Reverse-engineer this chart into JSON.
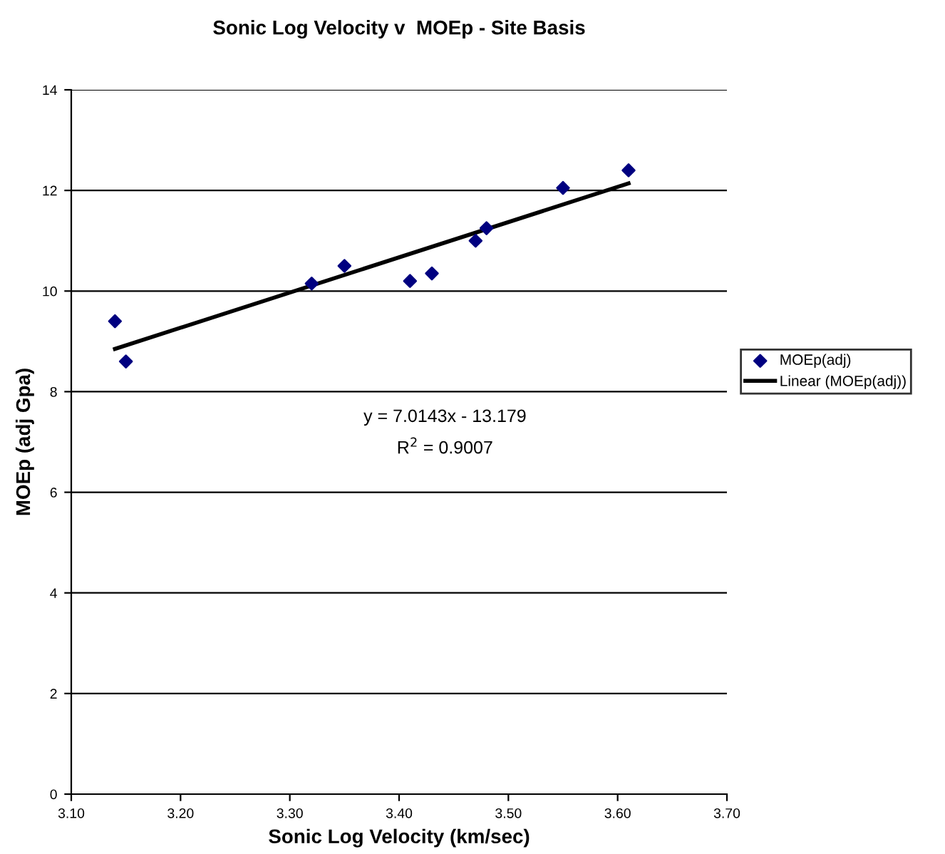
{
  "chart_data": {
    "type": "scatter",
    "title": "Sonic Log Velocity v  MOEp - Site Basis",
    "xlabel": "Sonic Log Velocity (km/sec)",
    "ylabel": "MOEp (adj Gpa)",
    "series": [
      {
        "name": "MOEp(adj)",
        "color": "#000080",
        "marker": "diamond",
        "x": [
          3.14,
          3.15,
          3.32,
          3.35,
          3.41,
          3.43,
          3.47,
          3.48,
          3.55,
          3.61
        ],
        "values": [
          9.4,
          8.6,
          10.15,
          10.5,
          10.2,
          10.35,
          11.0,
          11.25,
          12.05,
          12.4
        ]
      },
      {
        "name": "Linear (MOEp(adj))",
        "type": "line",
        "color": "#000000",
        "marker": "none",
        "line_style": "solid",
        "x": [
          3.14,
          3.61
        ],
        "values": [
          8.85,
          12.14
        ]
      }
    ],
    "xlim": [
      3.1,
      3.7
    ],
    "xticks": [
      {
        "value": 3.1,
        "label": "3.10"
      },
      {
        "value": 3.2,
        "label": "3.20"
      },
      {
        "value": 3.3,
        "label": "3.30"
      },
      {
        "value": 3.4,
        "label": "3.40"
      },
      {
        "value": 3.5,
        "label": "3.50"
      },
      {
        "value": 3.6,
        "label": "3.60"
      },
      {
        "value": 3.7,
        "label": "3.70"
      }
    ],
    "ylim": [
      0,
      14
    ],
    "yticks": [
      0,
      2,
      4,
      6,
      8,
      10,
      12,
      14
    ],
    "grid": "y",
    "legend": "right",
    "annotations": [
      "y = 7.0143x - 13.179",
      "R$^{2}$ = 0.9007"
    ]
  }
}
